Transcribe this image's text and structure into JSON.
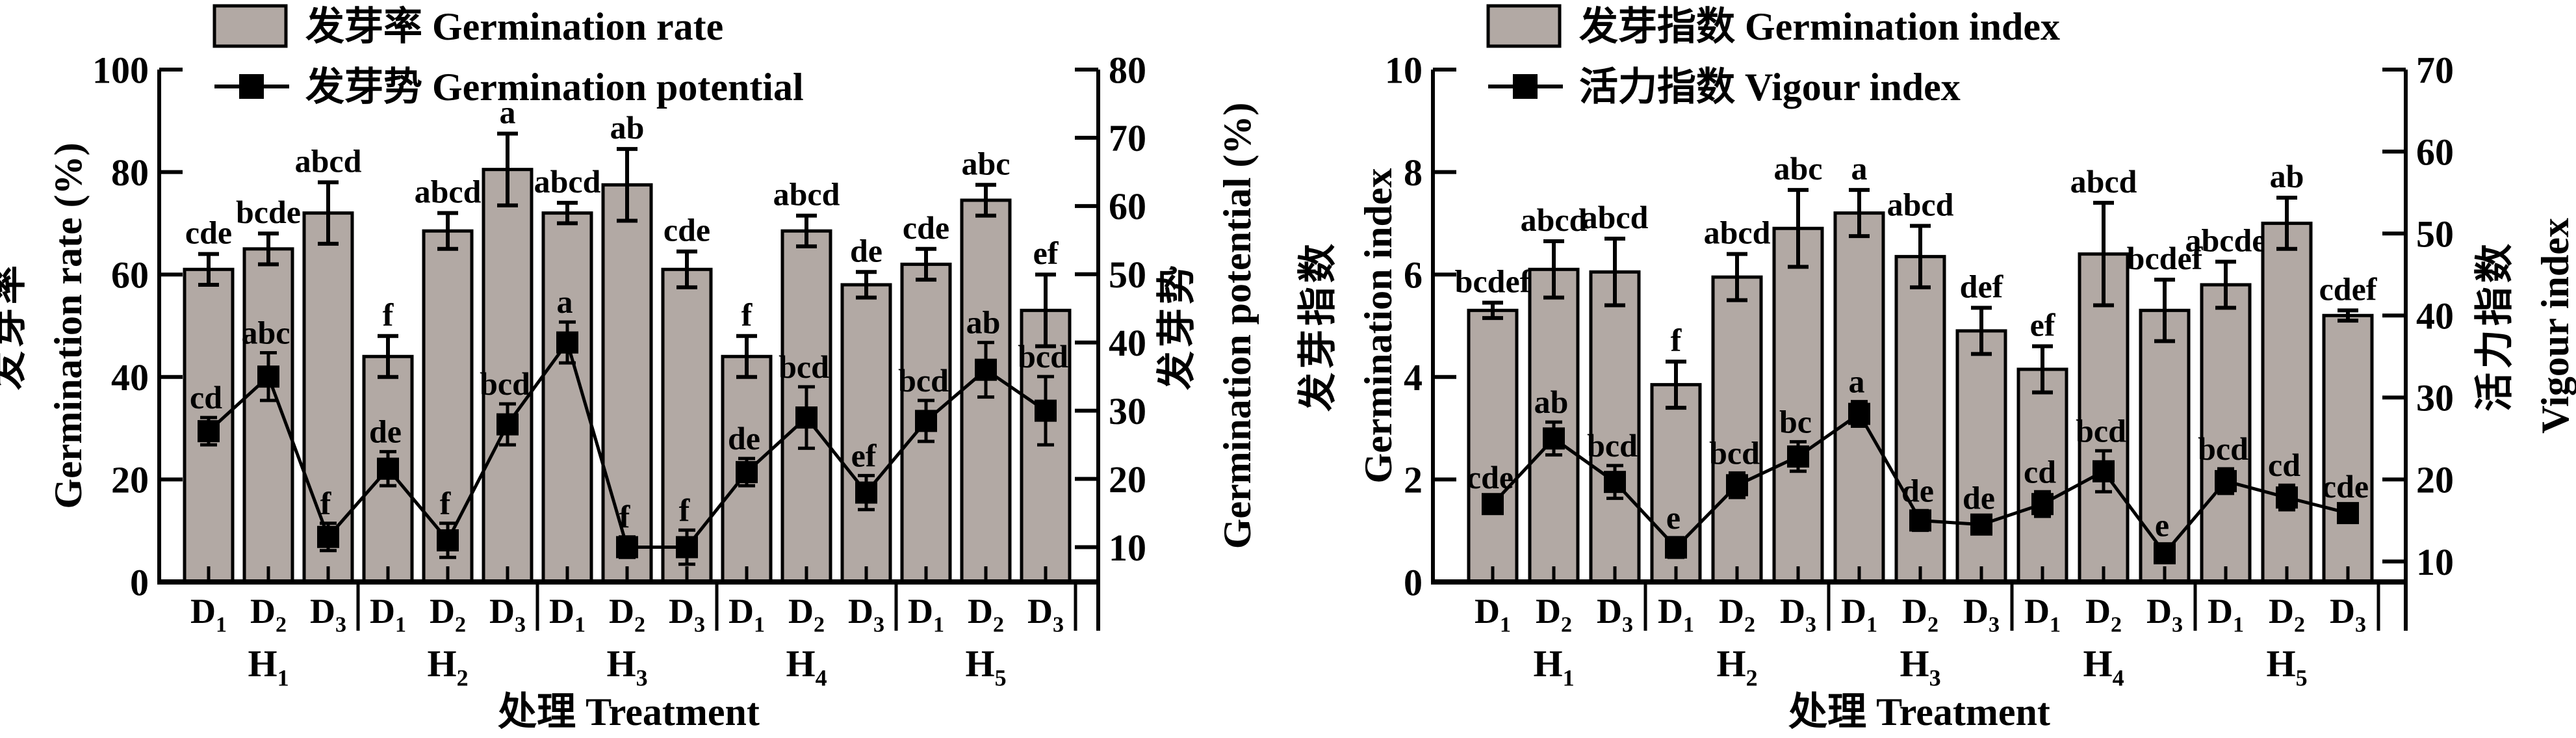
{
  "figure": {
    "background": "#ffffff"
  },
  "chart_data": [
    {
      "id": "germination-rate-potential",
      "type": "bar+line",
      "legend": [
        {
          "swatch": "bar",
          "label": "发芽率 Germination rate"
        },
        {
          "swatch": "line-marker",
          "label": "发芽势 Germination potential"
        }
      ],
      "x_axis": {
        "title": "处理 Treatment",
        "group_labels": [
          "H1",
          "H2",
          "H3",
          "H4",
          "H5"
        ],
        "sub_labels": [
          "D1",
          "D2",
          "D3"
        ]
      },
      "left_axis": {
        "title_cn": "发芽率",
        "title_en": "Germination rate (%)",
        "min": 0,
        "max": 100,
        "ticks": [
          0,
          20,
          40,
          60,
          80,
          100
        ]
      },
      "right_axis": {
        "title_cn": "发芽势",
        "title_en": "Germination potential (%)",
        "min": 4.9,
        "max": 80,
        "ticks": [
          10,
          20,
          30,
          40,
          50,
          60,
          70,
          80
        ]
      },
      "bar_series": {
        "name": "发芽率 Germination rate",
        "axis": "left",
        "values": [
          61,
          65,
          72,
          44,
          68.5,
          80.5,
          72,
          77.5,
          61,
          44,
          68.5,
          58,
          62,
          74.5,
          53
        ],
        "errors": [
          3,
          3,
          6,
          4,
          3.5,
          7,
          2,
          7,
          3.5,
          4,
          3,
          2.5,
          3,
          3,
          7
        ],
        "sig": [
          "cde",
          "bcde",
          "abcd",
          "f",
          "abcd",
          "a",
          "abcd",
          "ab",
          "cde",
          "f",
          "abcd",
          "de",
          "cde",
          "abc",
          "ef"
        ]
      },
      "line_series": {
        "name": "发芽势 Germination potential",
        "axis": "right",
        "values": [
          27,
          35,
          11.5,
          21.5,
          11,
          28,
          40,
          10,
          10,
          21,
          29,
          18,
          28.5,
          36,
          30
        ],
        "errors": [
          2,
          3.5,
          2,
          2.5,
          2.5,
          3,
          3,
          1.5,
          2.5,
          2,
          4.5,
          2.5,
          3,
          4,
          5
        ],
        "sig": [
          "cd",
          "abc",
          "f",
          "de",
          "f",
          "bcd",
          "a",
          "f",
          "f",
          "de",
          "bcd",
          "ef",
          "bcd",
          "ab",
          "bcd"
        ]
      },
      "colors": {
        "bar_fill": "#b2a9a4",
        "stroke": "#000000"
      }
    },
    {
      "id": "germination-vigour-index",
      "type": "bar+line",
      "legend": [
        {
          "swatch": "bar",
          "label": "发芽指数 Germination index"
        },
        {
          "swatch": "line-marker",
          "label": "活力指数 Vigour index"
        }
      ],
      "x_axis": {
        "title": "处理 Treatment",
        "group_labels": [
          "H1",
          "H2",
          "H3",
          "H4",
          "H5"
        ],
        "sub_labels": [
          "D1",
          "D2",
          "D3"
        ]
      },
      "left_axis": {
        "title_cn": "发芽指数",
        "title_en": "Germination index",
        "min": 0,
        "max": 10,
        "ticks": [
          0,
          2,
          4,
          6,
          8,
          10
        ]
      },
      "right_axis": {
        "title_cn": "活力指数",
        "title_en": "Vigour index",
        "min": 7.5,
        "max": 70,
        "ticks": [
          10,
          20,
          30,
          40,
          50,
          60,
          70
        ]
      },
      "bar_series": {
        "name": "发芽指数 Germination index",
        "axis": "left",
        "values": [
          5.3,
          6.1,
          6.05,
          3.85,
          5.95,
          6.9,
          7.2,
          6.35,
          4.9,
          4.15,
          6.4,
          5.3,
          5.8,
          7.0,
          5.2
        ],
        "errors": [
          0.15,
          0.55,
          0.65,
          0.45,
          0.45,
          0.75,
          0.45,
          0.6,
          0.45,
          0.45,
          1.0,
          0.6,
          0.45,
          0.5,
          0.1
        ],
        "sig": [
          "bcdef",
          "abcd",
          "abcd",
          "f",
          "abcd",
          "abc",
          "a",
          "abcd",
          "def",
          "ef",
          "abcd",
          "bcdef",
          "abcde",
          "ab",
          "cdef"
        ]
      },
      "line_series": {
        "name": "活力指数 Vigour index",
        "axis": "right",
        "values": [
          17,
          25,
          19.7,
          11.7,
          19.3,
          22.8,
          28,
          15,
          14.5,
          17,
          21,
          11,
          19.8,
          17.8,
          15.9
        ],
        "errors": [
          0.8,
          2,
          2,
          1.2,
          1.5,
          1.8,
          1.5,
          1.2,
          0.8,
          1.5,
          2.5,
          1,
          1.5,
          1.5,
          0.8
        ],
        "sig": [
          "cde",
          "ab",
          "bcd",
          "e",
          "bcd",
          "bc",
          "a",
          "de",
          "de",
          "cd",
          "bcd",
          "e",
          "bcd",
          "cd",
          "cde"
        ]
      },
      "colors": {
        "bar_fill": "#b2a9a4",
        "stroke": "#000000"
      }
    }
  ]
}
